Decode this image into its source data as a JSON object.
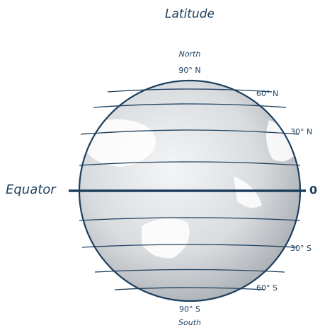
{
  "title": "Latitude",
  "north": {
    "name": "North",
    "label": "90° N"
  },
  "south": {
    "name": "South",
    "label": "90° S"
  },
  "equator": {
    "name": "Equator",
    "label": "0"
  },
  "latitudes": [
    "60° N",
    "30° N",
    "30° S",
    "60° S"
  ]
}
